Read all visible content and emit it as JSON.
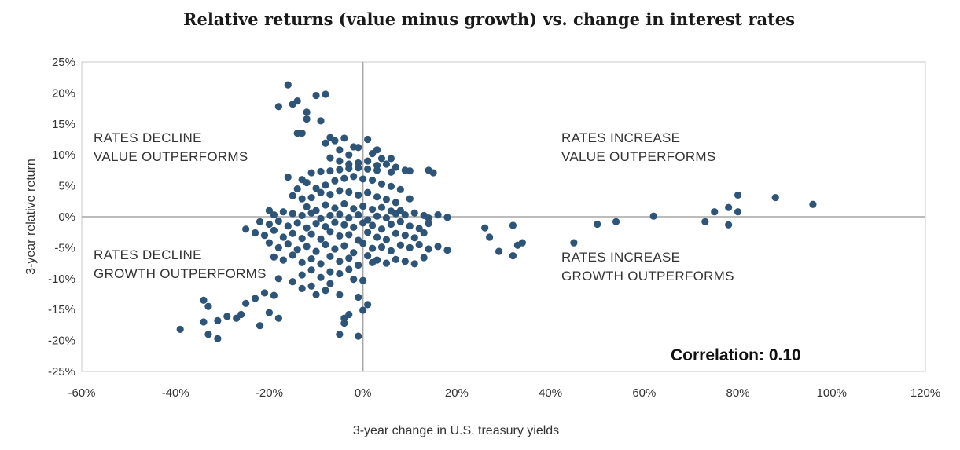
{
  "chart_data": {
    "type": "scatter",
    "title": "Relative returns (value minus growth) vs. change in interest rates",
    "xlabel": "3-year change in U.S. treasury yields",
    "ylabel": "3-year relative return",
    "xlim": [
      -60,
      120
    ],
    "ylim": [
      -25,
      25
    ],
    "x_ticks": [
      -60,
      -40,
      -20,
      0,
      20,
      40,
      60,
      80,
      100,
      120
    ],
    "x_tick_labels": [
      "-60%",
      "-40%",
      "-20%",
      "0%",
      "20%",
      "40%",
      "60%",
      "80%",
      "100%",
      "120%"
    ],
    "y_ticks": [
      25,
      20,
      15,
      10,
      5,
      0,
      -5,
      -10,
      -15,
      -20,
      -25
    ],
    "y_tick_labels": [
      "25%",
      "20%",
      "15%",
      "10%",
      "5%",
      "0%",
      "-5%",
      "-10%",
      "-15%",
      "-20%",
      "-25%"
    ],
    "grid": false,
    "point_color": "#2e5478",
    "axis_color": "#a6a6a6",
    "annotations": {
      "tl": [
        "RATES DECLINE",
        "VALUE OUTPERFORMS"
      ],
      "tr": [
        "RATES INCREASE",
        "VALUE OUTPERFORMS"
      ],
      "bl": [
        "RATES DECLINE",
        "GROWTH OUTPERFORMS"
      ],
      "br": [
        "RATES INCREASE",
        "GROWTH OUTPERFORMS"
      ],
      "correlation": "Correlation: 0.10"
    },
    "points": [
      [
        -16,
        21.3
      ],
      [
        -14,
        18.7
      ],
      [
        -15,
        18.2
      ],
      [
        -18,
        17.8
      ],
      [
        -10,
        19.6
      ],
      [
        -8,
        19.8
      ],
      [
        -12,
        16.9
      ],
      [
        -12,
        15.8
      ],
      [
        -9,
        15.5
      ],
      [
        -14,
        13.5
      ],
      [
        -13,
        13.5
      ],
      [
        -7,
        12.8
      ],
      [
        -6,
        12.3
      ],
      [
        -4,
        12.7
      ],
      [
        -8,
        11.9
      ],
      [
        -2,
        11.3
      ],
      [
        -1,
        11.2
      ],
      [
        1,
        12.5
      ],
      [
        3,
        10.8
      ],
      [
        -5,
        10.8
      ],
      [
        -3,
        10.0
      ],
      [
        2,
        10.2
      ],
      [
        4,
        9.4
      ],
      [
        6,
        9.4
      ],
      [
        -7,
        9.5
      ],
      [
        -5,
        9.0
      ],
      [
        -3,
        8.5
      ],
      [
        -1,
        8.7
      ],
      [
        1,
        9.0
      ],
      [
        3,
        8.3
      ],
      [
        5,
        8.5
      ],
      [
        7,
        8.0
      ],
      [
        9,
        7.5
      ],
      [
        -16,
        6.4
      ],
      [
        -13,
        6.0
      ],
      [
        -11,
        7.1
      ],
      [
        -9,
        7.3
      ],
      [
        -7,
        7.4
      ],
      [
        -5,
        7.6
      ],
      [
        -3,
        7.8
      ],
      [
        -1,
        7.9
      ],
      [
        1,
        7.7
      ],
      [
        3,
        7.5
      ],
      [
        6,
        7.2
      ],
      [
        10,
        7.4
      ],
      [
        14,
        7.5
      ],
      [
        15,
        7.1
      ],
      [
        -14,
        4.5
      ],
      [
        -12,
        5.5
      ],
      [
        -10,
        4.6
      ],
      [
        -8,
        5.1
      ],
      [
        -6,
        5.8
      ],
      [
        -4,
        6.2
      ],
      [
        -2,
        6.5
      ],
      [
        0,
        6.1
      ],
      [
        2,
        5.9
      ],
      [
        4,
        5.3
      ],
      [
        6,
        4.9
      ],
      [
        8,
        4.4
      ],
      [
        -15,
        3.4
      ],
      [
        -13,
        2.9
      ],
      [
        -11,
        3.1
      ],
      [
        -9,
        3.9
      ],
      [
        -7,
        3.6
      ],
      [
        -5,
        4.2
      ],
      [
        -3,
        4.0
      ],
      [
        -1,
        3.5
      ],
      [
        1,
        3.9
      ],
      [
        3,
        3.2
      ],
      [
        5,
        2.8
      ],
      [
        7,
        2.3
      ],
      [
        10,
        2.9
      ],
      [
        -12,
        1.6
      ],
      [
        -10,
        1.0
      ],
      [
        -8,
        1.9
      ],
      [
        -6,
        1.4
      ],
      [
        -4,
        2.1
      ],
      [
        -2,
        1.3
      ],
      [
        0,
        1.7
      ],
      [
        2,
        1.2
      ],
      [
        4,
        1.5
      ],
      [
        6,
        0.9
      ],
      [
        8,
        1.0
      ],
      [
        -20,
        1.0
      ],
      [
        -19,
        0.3
      ],
      [
        -17,
        0.8
      ],
      [
        -15,
        0.5
      ],
      [
        -13,
        0.2
      ],
      [
        -11,
        0.6
      ],
      [
        -9,
        -0.3
      ],
      [
        -7,
        0.2
      ],
      [
        -5,
        0.4
      ],
      [
        -3,
        -0.2
      ],
      [
        -1,
        0.3
      ],
      [
        1,
        -0.5
      ],
      [
        3,
        0.1
      ],
      [
        5,
        -0.2
      ],
      [
        7,
        0.5
      ],
      [
        9,
        0.3
      ],
      [
        11,
        0.6
      ],
      [
        13,
        0.2
      ],
      [
        14,
        -0.2
      ],
      [
        16,
        0.3
      ],
      [
        18,
        -0.1
      ],
      [
        -22,
        -0.8
      ],
      [
        -20,
        -1.2
      ],
      [
        -18,
        -0.7
      ],
      [
        -16,
        -1.5
      ],
      [
        -14,
        -1.0
      ],
      [
        -12,
        -1.8
      ],
      [
        -10,
        -1.1
      ],
      [
        -8,
        -1.6
      ],
      [
        -6,
        -0.9
      ],
      [
        -4,
        -1.3
      ],
      [
        -2,
        -1.7
      ],
      [
        0,
        -1.0
      ],
      [
        2,
        -1.4
      ],
      [
        4,
        -2.0
      ],
      [
        6,
        -1.2
      ],
      [
        8,
        -0.8
      ],
      [
        10,
        -1.5
      ],
      [
        12,
        -1.9
      ],
      [
        14,
        -1.1
      ],
      [
        -25,
        -2.0
      ],
      [
        -23,
        -2.6
      ],
      [
        -21,
        -3.0
      ],
      [
        -19,
        -2.2
      ],
      [
        -17,
        -3.3
      ],
      [
        -15,
        -2.7
      ],
      [
        -13,
        -3.5
      ],
      [
        -11,
        -2.8
      ],
      [
        -9,
        -3.6
      ],
      [
        -7,
        -2.4
      ],
      [
        -5,
        -3.1
      ],
      [
        -3,
        -2.9
      ],
      [
        -1,
        -3.8
      ],
      [
        1,
        -2.5
      ],
      [
        3,
        -3.3
      ],
      [
        5,
        -3.7
      ],
      [
        7,
        -2.7
      ],
      [
        9,
        -3.0
      ],
      [
        11,
        -3.4
      ],
      [
        13,
        -2.6
      ],
      [
        -20,
        -4.2
      ],
      [
        -18,
        -5.0
      ],
      [
        -16,
        -4.4
      ],
      [
        -14,
        -5.3
      ],
      [
        -12,
        -4.8
      ],
      [
        -10,
        -5.6
      ],
      [
        -8,
        -4.5
      ],
      [
        -6,
        -5.2
      ],
      [
        -4,
        -4.7
      ],
      [
        -2,
        -5.8
      ],
      [
        0,
        -4.3
      ],
      [
        2,
        -5.1
      ],
      [
        4,
        -4.9
      ],
      [
        6,
        -5.5
      ],
      [
        8,
        -4.6
      ],
      [
        10,
        -5.0
      ],
      [
        12,
        -4.5
      ],
      [
        14,
        -5.2
      ],
      [
        16,
        -4.8
      ],
      [
        18,
        -5.4
      ],
      [
        -19,
        -6.5
      ],
      [
        -17,
        -7.0
      ],
      [
        -15,
        -6.2
      ],
      [
        -13,
        -7.4
      ],
      [
        -11,
        -6.8
      ],
      [
        -9,
        -7.6
      ],
      [
        -7,
        -6.4
      ],
      [
        -5,
        -7.2
      ],
      [
        -3,
        -6.7
      ],
      [
        -1,
        -7.8
      ],
      [
        1,
        -6.3
      ],
      [
        3,
        -7.0
      ],
      [
        5,
        -7.5
      ],
      [
        7,
        -6.9
      ],
      [
        9,
        -7.2
      ],
      [
        11,
        -7.6
      ],
      [
        13,
        -6.6
      ],
      [
        -13,
        -9.4
      ],
      [
        -11,
        -8.6
      ],
      [
        -9,
        -9.8
      ],
      [
        -7,
        -8.9
      ],
      [
        -5,
        -9.2
      ],
      [
        -3,
        -8.5
      ],
      [
        -2,
        -10.1
      ],
      [
        0,
        -10.3
      ],
      [
        2,
        -7.4
      ],
      [
        -18,
        -10.0
      ],
      [
        -15,
        -10.5
      ],
      [
        -13,
        -11.6
      ],
      [
        -11,
        -11.2
      ],
      [
        -10,
        -12.6
      ],
      [
        -8,
        -11.9
      ],
      [
        -7,
        -10.8
      ],
      [
        -19,
        -12.7
      ],
      [
        -21,
        -12.3
      ],
      [
        -23,
        -13.2
      ],
      [
        -25,
        -14.0
      ],
      [
        -20,
        -15.5
      ],
      [
        -18,
        -16.4
      ],
      [
        -26,
        -15.8
      ],
      [
        -27,
        -16.4
      ],
      [
        -29,
        -16.1
      ],
      [
        -31,
        -16.8
      ],
      [
        -34,
        -13.5
      ],
      [
        -33,
        -14.5
      ],
      [
        -34,
        -17.0
      ],
      [
        -33,
        -19.0
      ],
      [
        -31,
        -19.7
      ],
      [
        -39,
        -18.2
      ],
      [
        -22,
        -17.6
      ],
      [
        -5,
        -12.6
      ],
      [
        -4,
        -16.4
      ],
      [
        -3,
        -15.8
      ],
      [
        -4,
        -17.2
      ],
      [
        -5,
        -19.0
      ],
      [
        -1,
        -19.3
      ],
      [
        0,
        -15.1
      ],
      [
        1,
        -14.2
      ],
      [
        -1,
        -13.0
      ],
      [
        26,
        -1.8
      ],
      [
        27,
        -3.3
      ],
      [
        29,
        -5.6
      ],
      [
        32,
        -1.4
      ],
      [
        32,
        -6.3
      ],
      [
        33,
        -4.6
      ],
      [
        34,
        -4.2
      ],
      [
        45,
        -4.2
      ],
      [
        50,
        -1.2
      ],
      [
        54,
        -0.8
      ],
      [
        62,
        0.1
      ],
      [
        73,
        -0.8
      ],
      [
        75,
        0.8
      ],
      [
        78,
        1.5
      ],
      [
        78,
        -1.3
      ],
      [
        80,
        3.5
      ],
      [
        80,
        0.8
      ],
      [
        88,
        3.1
      ],
      [
        96,
        2.0
      ]
    ]
  }
}
